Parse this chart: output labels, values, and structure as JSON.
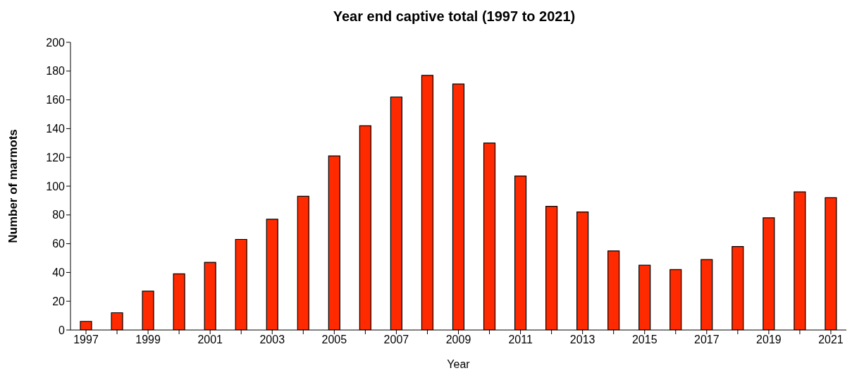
{
  "chart_data": {
    "type": "bar",
    "title": "Year end captive total (1997 to 2021)",
    "xlabel": "Year",
    "ylabel": "Number of marmots",
    "categories": [
      "1997",
      null,
      "1999",
      null,
      "2001",
      null,
      "2003",
      null,
      "2005",
      null,
      "2007",
      null,
      "2009",
      null,
      "2011",
      null,
      "2013",
      null,
      "2015",
      null,
      "2017",
      null,
      "2019",
      null,
      "2021"
    ],
    "values": [
      6,
      12,
      27,
      39,
      47,
      63,
      77,
      93,
      121,
      142,
      162,
      177,
      171,
      130,
      107,
      86,
      82,
      55,
      45,
      42,
      49,
      58,
      78,
      96,
      92
    ],
    "color": "#ff2a00",
    "ylim": [
      0,
      200
    ],
    "yticks": [
      0,
      20,
      40,
      60,
      80,
      100,
      120,
      140,
      160,
      180,
      200
    ],
    "grid": false,
    "legend": false
  }
}
